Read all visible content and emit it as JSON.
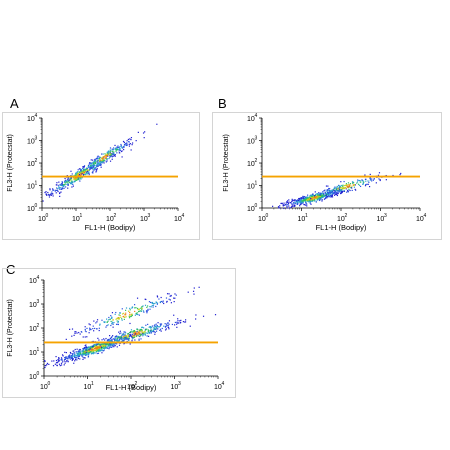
{
  "chart_data": [
    {
      "panel": "A",
      "type": "scatter",
      "xlabel": "FL1-H (Bodipy)",
      "ylabel": "FL3-H (Protecstat)",
      "xscale": "log",
      "yscale": "log",
      "xlim": [
        1,
        10000
      ],
      "ylim": [
        1,
        10000
      ],
      "ticks": [
        "10",
        "10",
        "10",
        "10",
        "10"
      ],
      "tick_exponents": [
        "0",
        "1",
        "2",
        "3",
        "4"
      ],
      "threshold_line": 25,
      "line_color": "#f5a300",
      "clusters": [
        {
          "x": 12,
          "y": 30,
          "spread": 0.35,
          "n": 380,
          "along": 0.9
        },
        {
          "x": 70,
          "y": 200,
          "spread": 0.3,
          "n": 220,
          "along": 0.9
        }
      ]
    },
    {
      "panel": "B",
      "type": "scatter",
      "xlabel": "FL1-H (Bodipy)",
      "ylabel": "FL3-H (Protecstat)",
      "xscale": "log",
      "yscale": "log",
      "xlim": [
        1,
        10000
      ],
      "ylim": [
        1,
        10000
      ],
      "ticks": [
        "10",
        "10",
        "10",
        "10",
        "10"
      ],
      "tick_exponents": [
        "0",
        "1",
        "2",
        "3",
        "4"
      ],
      "threshold_line": 25,
      "line_color": "#f5a300",
      "clusters": [
        {
          "x": 20,
          "y": 3,
          "spread": 0.25,
          "n": 520,
          "along": 0.45
        },
        {
          "x": 150,
          "y": 10,
          "spread": 0.3,
          "n": 180,
          "along": 0.45
        }
      ]
    },
    {
      "panel": "C",
      "type": "scatter",
      "xlabel": "FL1-H (Bodipy)",
      "ylabel": "FL3-H (Protecstat)",
      "xscale": "log",
      "yscale": "log",
      "xlim": [
        1,
        10000
      ],
      "ylim": [
        1,
        10000
      ],
      "ticks": [
        "10",
        "10",
        "10",
        "10",
        "10"
      ],
      "tick_exponents": [
        "0",
        "1",
        "2",
        "3",
        "4"
      ],
      "threshold_line": 25,
      "line_color": "#f5a300",
      "clusters": [
        {
          "x": 15,
          "y": 15,
          "spread": 0.3,
          "n": 700,
          "along": 0.6
        },
        {
          "x": 120,
          "y": 60,
          "spread": 0.35,
          "n": 280,
          "along": 0.5
        },
        {
          "x": 80,
          "y": 400,
          "spread": 0.4,
          "n": 220,
          "along": 0.7
        }
      ]
    }
  ]
}
